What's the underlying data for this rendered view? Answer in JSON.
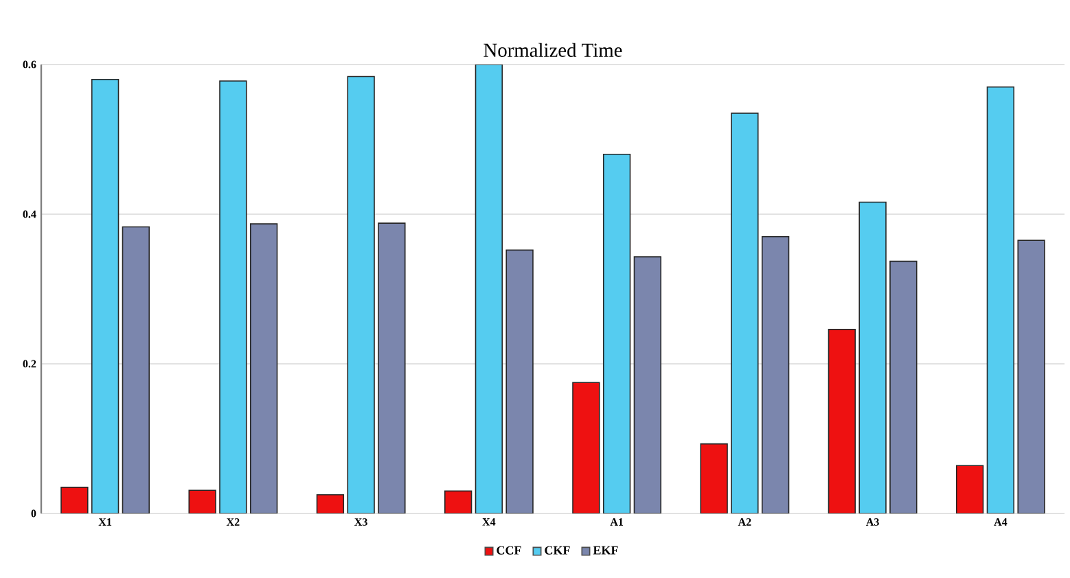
{
  "chart_data": {
    "type": "bar",
    "title": "Normalized Time",
    "categories": [
      "X1",
      "X2",
      "X3",
      "X4",
      "A1",
      "A2",
      "A3",
      "A4"
    ],
    "series": [
      {
        "name": "CCF",
        "color": "#ee1111",
        "values": [
          0.035,
          0.031,
          0.025,
          0.03,
          0.175,
          0.093,
          0.246,
          0.064
        ]
      },
      {
        "name": "CKF",
        "color": "#55ccf0",
        "values": [
          0.58,
          0.578,
          0.584,
          0.6,
          0.48,
          0.535,
          0.416,
          0.57
        ]
      },
      {
        "name": "EKF",
        "color": "#7b86ad",
        "values": [
          0.383,
          0.387,
          0.388,
          0.352,
          0.343,
          0.37,
          0.337,
          0.365
        ]
      }
    ],
    "ylim": [
      0,
      0.6
    ],
    "yticks": [
      0,
      0.2,
      0.4,
      0.6
    ],
    "grid": "y",
    "legend": "bottom"
  }
}
